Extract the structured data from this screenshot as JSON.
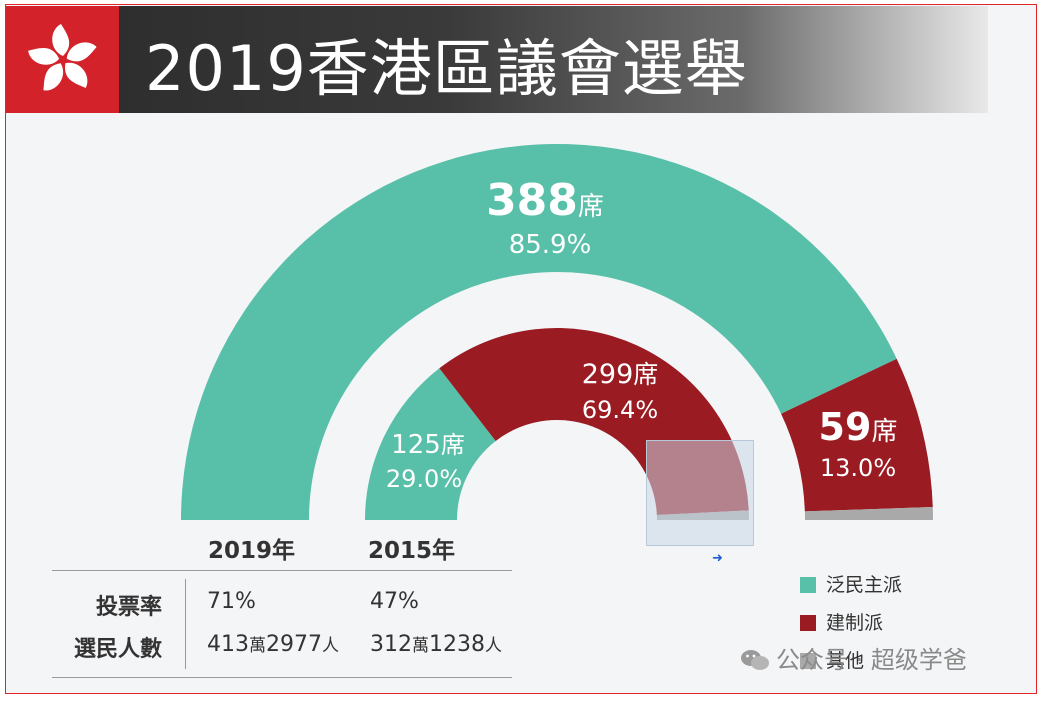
{
  "title": "2019香港區議會選舉",
  "colors": {
    "pro_democracy": "#58bfa8",
    "pro_establishment": "#9a1b22",
    "other": "#a9a9a9",
    "flag_red": "#d3222a"
  },
  "chart_data": {
    "type": "pie",
    "subtype": "concentric-semicircle",
    "title": "2019香港區議會選舉",
    "categories": [
      "泛民主派",
      "建制派",
      "其他"
    ],
    "rings": [
      {
        "name": "2019年",
        "slices": [
          {
            "label": "泛民主派",
            "seats": 388,
            "seat_label": "388",
            "percent": 85.9,
            "percent_label": "85.9%"
          },
          {
            "label": "建制派",
            "seats": 59,
            "seat_label": "59",
            "percent": 13.0,
            "percent_label": "13.0%"
          },
          {
            "label": "其他",
            "percent": 1.1
          }
        ]
      },
      {
        "name": "2015年",
        "slices": [
          {
            "label": "泛民主派",
            "seats": 125,
            "seat_label": "125",
            "percent": 29.0,
            "percent_label": "29.0%"
          },
          {
            "label": "建制派",
            "seats": 299,
            "seat_label": "299",
            "percent": 69.4,
            "percent_label": "69.4%"
          },
          {
            "label": "其他",
            "percent": 1.6
          }
        ]
      }
    ],
    "seat_unit": "席",
    "legend": {
      "position": "bottom-right",
      "entries": [
        "泛民主派",
        "建制派",
        "其他"
      ]
    }
  },
  "year_labels": [
    "2019年",
    "2015年"
  ],
  "stats": {
    "rows": [
      {
        "label": "投票率",
        "values": [
          {
            "main": "71%"
          },
          {
            "main": "47%"
          }
        ]
      },
      {
        "label": "選民人數",
        "values": [
          {
            "a": "413",
            "u1": "萬",
            "b": "2977",
            "u2": "人"
          },
          {
            "a": "312",
            "u1": "萬",
            "b": "1238",
            "u2": "人"
          }
        ]
      }
    ]
  },
  "watermark": "公众号 · 超级学爸",
  "icons": {
    "flag": "bauhinia-flag-icon",
    "wechat": "wechat-icon",
    "cursor": "cursor-arrow-icon"
  }
}
